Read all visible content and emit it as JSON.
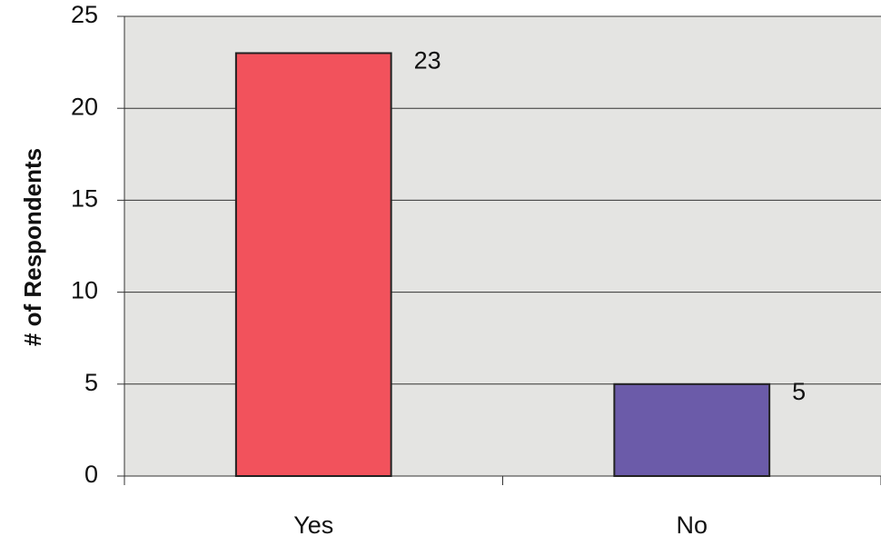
{
  "chart_data": {
    "type": "bar",
    "y_label": "# of Respondents",
    "categories": [
      "Yes",
      "No"
    ],
    "values": [
      23,
      5
    ],
    "colors": [
      "#f2525c",
      "#6b5ba9"
    ],
    "ylim": [
      0,
      25
    ],
    "yticks": [
      0,
      5,
      10,
      15,
      20,
      25
    ],
    "grid": true
  }
}
